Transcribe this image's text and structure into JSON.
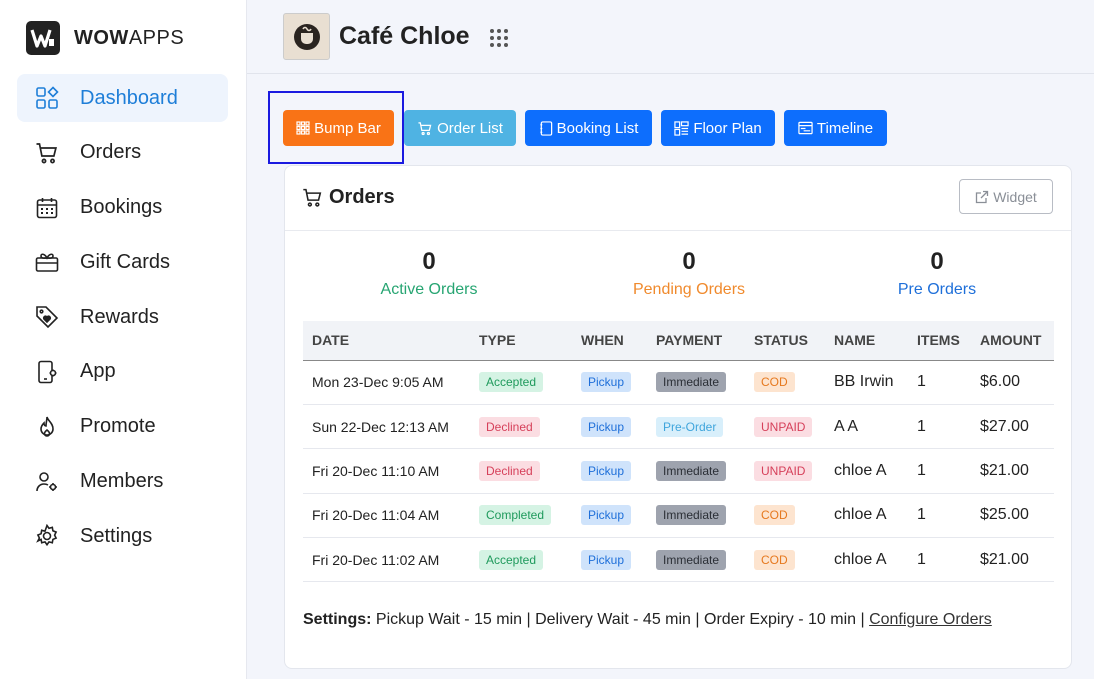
{
  "brand": {
    "logo_bold": "WOW",
    "logo_rest": "APPS"
  },
  "sidebar": {
    "items": [
      {
        "label": "Dashboard",
        "icon": "dashboard-icon",
        "active": true
      },
      {
        "label": "Orders",
        "icon": "cart-icon"
      },
      {
        "label": "Bookings",
        "icon": "calendar-icon"
      },
      {
        "label": "Gift Cards",
        "icon": "gift-card-icon"
      },
      {
        "label": "Rewards",
        "icon": "tag-heart-icon"
      },
      {
        "label": "App",
        "icon": "mobile-app-icon"
      },
      {
        "label": "Promote",
        "icon": "flame-icon"
      },
      {
        "label": "Members",
        "icon": "members-icon"
      },
      {
        "label": "Settings",
        "icon": "gear-icon"
      }
    ]
  },
  "header": {
    "title": "Café Chloe"
  },
  "toolbar": {
    "bump_bar": "Bump Bar",
    "order_list": "Order List",
    "booking_list": "Booking List",
    "floor_plan": "Floor Plan",
    "timeline": "Timeline"
  },
  "orders_card": {
    "title": "Orders",
    "widget_label": "Widget",
    "stats": {
      "active": {
        "count": "0",
        "label": "Active Orders"
      },
      "pending": {
        "count": "0",
        "label": "Pending Orders"
      },
      "pre": {
        "count": "0",
        "label": "Pre Orders"
      }
    },
    "columns": [
      "DATE",
      "TYPE",
      "WHEN",
      "PAYMENT",
      "STATUS",
      "NAME",
      "ITEMS",
      "AMOUNT"
    ],
    "rows": [
      {
        "date": "Mon 23-Dec 9:05 AM",
        "type": "Accepted",
        "when": "Pickup",
        "payment": "Immediate",
        "status": "COD",
        "name": "BB Irwin",
        "items": "1",
        "amount": "$6.00"
      },
      {
        "date": "Sun 22-Dec 12:13 AM",
        "type": "Declined",
        "when": "Pickup",
        "payment": "Pre-Order",
        "status": "UNPAID",
        "name": "A A",
        "items": "1",
        "amount": "$27.00"
      },
      {
        "date": "Fri 20-Dec 11:10 AM",
        "type": "Declined",
        "when": "Pickup",
        "payment": "Immediate",
        "status": "UNPAID",
        "name": "chloe A",
        "items": "1",
        "amount": "$21.00"
      },
      {
        "date": "Fri 20-Dec 11:04 AM",
        "type": "Completed",
        "when": "Pickup",
        "payment": "Immediate",
        "status": "COD",
        "name": "chloe A",
        "items": "1",
        "amount": "$25.00"
      },
      {
        "date": "Fri 20-Dec 11:02 AM",
        "type": "Accepted",
        "when": "Pickup",
        "payment": "Immediate",
        "status": "COD",
        "name": "chloe A",
        "items": "1",
        "amount": "$21.00"
      }
    ],
    "settings": {
      "label": "Settings:",
      "text": " Pickup Wait - 15 min | Delivery Wait - 45 min | Order Expiry - 10 min | ",
      "link": "Configure Orders"
    }
  }
}
